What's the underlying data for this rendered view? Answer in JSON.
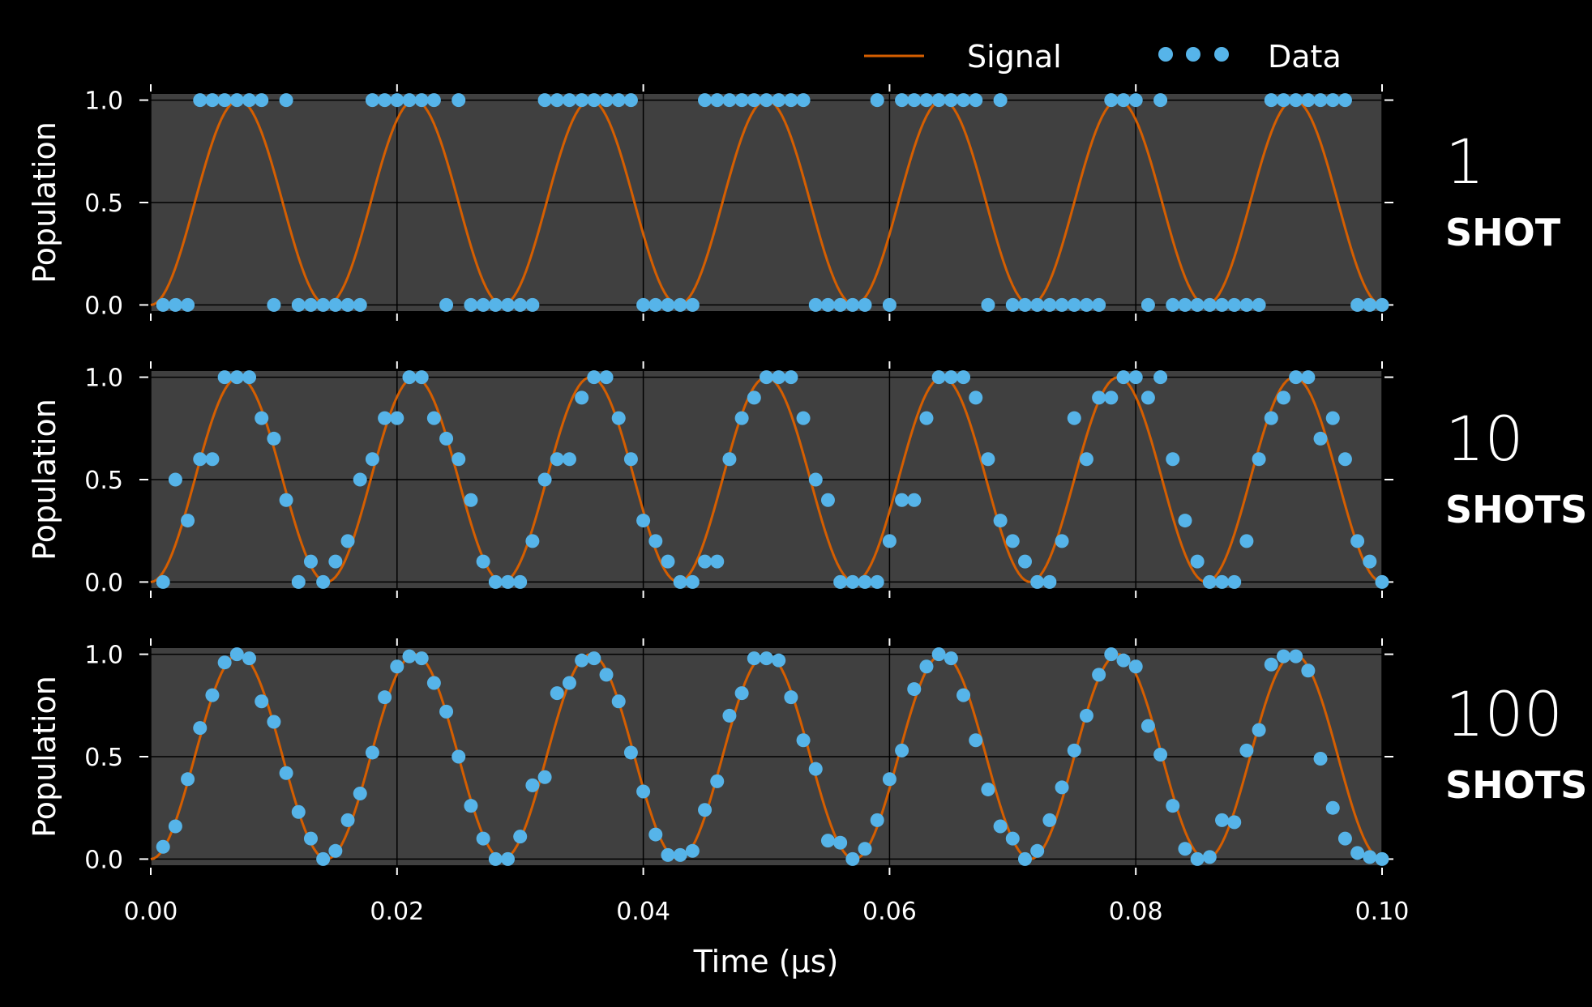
{
  "legend": {
    "signal_label": "Signal",
    "data_label": "Data"
  },
  "colors": {
    "background": "#000000",
    "plot_background": "#404040",
    "signal": "#d55e00",
    "data": "#56b4e9",
    "grid": "#000000",
    "text": "#ffffff"
  },
  "chart_data": {
    "type": "line",
    "title": "",
    "xlabel": "Time (µs)",
    "ylabel": "Population",
    "xlim": [
      0.0,
      0.1
    ],
    "ylim": [
      -0.03,
      1.03
    ],
    "x_ticks": [
      "0.00",
      "0.02",
      "0.04",
      "0.06",
      "0.08",
      "0.10"
    ],
    "y_ticks": [
      "0.0",
      "0.5",
      "1.0"
    ],
    "grid": true,
    "legend_position": "top-right",
    "signal_frequency_mhz": 70,
    "panels": [
      {
        "shots_number": "1",
        "shots_word": "SHOT",
        "series": [
          {
            "name": "Data",
            "x": [
              0.001,
              0.002,
              0.003,
              0.004,
              0.005,
              0.006,
              0.007,
              0.008,
              0.009,
              0.01,
              0.011,
              0.012,
              0.013,
              0.014,
              0.015,
              0.016,
              0.017,
              0.018,
              0.019,
              0.02,
              0.021,
              0.022,
              0.023,
              0.024,
              0.025,
              0.026,
              0.027,
              0.028,
              0.029,
              0.03,
              0.031,
              0.032,
              0.033,
              0.034,
              0.035,
              0.036,
              0.037,
              0.038,
              0.039,
              0.04,
              0.041,
              0.042,
              0.043,
              0.044,
              0.045,
              0.046,
              0.047,
              0.048,
              0.049,
              0.05,
              0.051,
              0.052,
              0.053,
              0.054,
              0.055,
              0.056,
              0.057,
              0.058,
              0.059,
              0.06,
              0.061,
              0.062,
              0.063,
              0.064,
              0.065,
              0.066,
              0.067,
              0.068,
              0.069,
              0.07,
              0.071,
              0.072,
              0.073,
              0.074,
              0.075,
              0.076,
              0.077,
              0.078,
              0.079,
              0.08,
              0.081,
              0.082,
              0.083,
              0.084,
              0.085,
              0.086,
              0.087,
              0.088,
              0.089,
              0.09,
              0.091,
              0.092,
              0.093,
              0.094,
              0.095,
              0.096,
              0.097,
              0.098,
              0.099,
              0.1
            ],
            "values": [
              0,
              0,
              0,
              1,
              1,
              1,
              1,
              1,
              1,
              0,
              1,
              0,
              0,
              0,
              0,
              0,
              0,
              1,
              1,
              1,
              1,
              1,
              1,
              0,
              1,
              0,
              0,
              0,
              0,
              0,
              0,
              1,
              1,
              1,
              1,
              1,
              1,
              1,
              1,
              0,
              0,
              0,
              0,
              0,
              1,
              1,
              1,
              1,
              1,
              1,
              1,
              1,
              1,
              0,
              0,
              0,
              0,
              0,
              1,
              0,
              1,
              1,
              1,
              1,
              1,
              1,
              1,
              0,
              1,
              0,
              0,
              0,
              0,
              0,
              0,
              0,
              0,
              1,
              1,
              1,
              0,
              1,
              0,
              0,
              0,
              0,
              0,
              0,
              0,
              0,
              1,
              1,
              1,
              1,
              1,
              1,
              1,
              0,
              0,
              0
            ]
          }
        ]
      },
      {
        "shots_number": "10",
        "shots_word": "SHOTS",
        "series": [
          {
            "name": "Data",
            "x": [
              0.001,
              0.002,
              0.003,
              0.004,
              0.005,
              0.006,
              0.007,
              0.008,
              0.009,
              0.01,
              0.011,
              0.012,
              0.013,
              0.014,
              0.015,
              0.016,
              0.017,
              0.018,
              0.019,
              0.02,
              0.021,
              0.022,
              0.023,
              0.024,
              0.025,
              0.026,
              0.027,
              0.028,
              0.029,
              0.03,
              0.031,
              0.032,
              0.033,
              0.034,
              0.035,
              0.036,
              0.037,
              0.038,
              0.039,
              0.04,
              0.041,
              0.042,
              0.043,
              0.044,
              0.045,
              0.046,
              0.047,
              0.048,
              0.049,
              0.05,
              0.051,
              0.052,
              0.053,
              0.054,
              0.055,
              0.056,
              0.057,
              0.058,
              0.059,
              0.06,
              0.061,
              0.062,
              0.063,
              0.064,
              0.065,
              0.066,
              0.067,
              0.068,
              0.069,
              0.07,
              0.071,
              0.072,
              0.073,
              0.074,
              0.075,
              0.076,
              0.077,
              0.078,
              0.079,
              0.08,
              0.081,
              0.082,
              0.083,
              0.084,
              0.085,
              0.086,
              0.087,
              0.088,
              0.089,
              0.09,
              0.091,
              0.092,
              0.093,
              0.094,
              0.095,
              0.096,
              0.097,
              0.098,
              0.099,
              0.1
            ],
            "values": [
              0.0,
              0.5,
              0.3,
              0.6,
              0.6,
              1.0,
              1.0,
              1.0,
              0.8,
              0.7,
              0.4,
              0.0,
              0.1,
              0.0,
              0.1,
              0.2,
              0.5,
              0.6,
              0.8,
              0.8,
              1.0,
              1.0,
              0.8,
              0.7,
              0.6,
              0.4,
              0.1,
              0.0,
              0.0,
              0.0,
              0.2,
              0.5,
              0.6,
              0.6,
              0.9,
              1.0,
              1.0,
              0.8,
              0.6,
              0.3,
              0.2,
              0.1,
              0.0,
              0.0,
              0.1,
              0.1,
              0.6,
              0.8,
              0.9,
              1.0,
              1.0,
              1.0,
              0.8,
              0.5,
              0.4,
              0.0,
              0.0,
              0.0,
              0.0,
              0.2,
              0.4,
              0.4,
              0.8,
              1.0,
              1.0,
              1.0,
              0.9,
              0.6,
              0.3,
              0.2,
              0.1,
              0.0,
              0.0,
              0.2,
              0.8,
              0.6,
              0.9,
              0.9,
              1.0,
              1.0,
              0.9,
              1.0,
              0.6,
              0.3,
              0.1,
              0.0,
              0.0,
              0.0,
              0.2,
              0.6,
              0.8,
              0.9,
              1.0,
              1.0,
              0.7,
              0.8,
              0.6,
              0.2,
              0.1,
              0.0
            ]
          }
        ]
      },
      {
        "shots_number": "100",
        "shots_word": "SHOTS",
        "series": [
          {
            "name": "Data",
            "x": [
              0.001,
              0.002,
              0.003,
              0.004,
              0.005,
              0.006,
              0.007,
              0.008,
              0.009,
              0.01,
              0.011,
              0.012,
              0.013,
              0.014,
              0.015,
              0.016,
              0.017,
              0.018,
              0.019,
              0.02,
              0.021,
              0.022,
              0.023,
              0.024,
              0.025,
              0.026,
              0.027,
              0.028,
              0.029,
              0.03,
              0.031,
              0.032,
              0.033,
              0.034,
              0.035,
              0.036,
              0.037,
              0.038,
              0.039,
              0.04,
              0.041,
              0.042,
              0.043,
              0.044,
              0.045,
              0.046,
              0.047,
              0.048,
              0.049,
              0.05,
              0.051,
              0.052,
              0.053,
              0.054,
              0.055,
              0.056,
              0.057,
              0.058,
              0.059,
              0.06,
              0.061,
              0.062,
              0.063,
              0.064,
              0.065,
              0.066,
              0.067,
              0.068,
              0.069,
              0.07,
              0.071,
              0.072,
              0.073,
              0.074,
              0.075,
              0.076,
              0.077,
              0.078,
              0.079,
              0.08,
              0.081,
              0.082,
              0.083,
              0.084,
              0.085,
              0.086,
              0.087,
              0.088,
              0.089,
              0.09,
              0.091,
              0.092,
              0.093,
              0.094,
              0.095,
              0.096,
              0.097,
              0.098,
              0.099,
              0.1
            ],
            "values": [
              0.06,
              0.16,
              0.39,
              0.64,
              0.8,
              0.96,
              1.0,
              0.98,
              0.77,
              0.67,
              0.42,
              0.23,
              0.1,
              0.0,
              0.04,
              0.19,
              0.32,
              0.52,
              0.79,
              0.94,
              0.99,
              0.98,
              0.86,
              0.72,
              0.5,
              0.26,
              0.1,
              0.0,
              0.0,
              0.11,
              0.36,
              0.4,
              0.81,
              0.86,
              0.97,
              0.98,
              0.9,
              0.77,
              0.52,
              0.33,
              0.12,
              0.02,
              0.02,
              0.04,
              0.24,
              0.38,
              0.7,
              0.81,
              0.98,
              0.98,
              0.97,
              0.79,
              0.58,
              0.44,
              0.09,
              0.08,
              0.0,
              0.05,
              0.19,
              0.39,
              0.53,
              0.83,
              0.94,
              1.0,
              0.98,
              0.8,
              0.58,
              0.34,
              0.16,
              0.1,
              0.0,
              0.04,
              0.19,
              0.35,
              0.53,
              0.7,
              0.9,
              1.0,
              0.97,
              0.94,
              0.65,
              0.51,
              0.26,
              0.05,
              0.0,
              0.01,
              0.19,
              0.18,
              0.53,
              0.63,
              0.95,
              0.99,
              0.99,
              0.92,
              0.49,
              0.25,
              0.1,
              0.03,
              0.01,
              0.0
            ]
          }
        ]
      }
    ]
  }
}
